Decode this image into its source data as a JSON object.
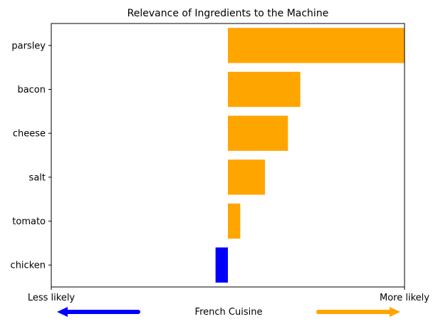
{
  "chart_data": {
    "type": "bar",
    "orientation": "horizontal",
    "title": "Relevance of Ingredients to the Machine",
    "categories": [
      "parsley",
      "bacon",
      "cheese",
      "salt",
      "tomato",
      "chicken"
    ],
    "values": [
      1.0,
      0.41,
      0.34,
      0.21,
      0.07,
      -0.07
    ],
    "bar_colors": [
      "#FFA500",
      "#FFA500",
      "#FFA500",
      "#FFA500",
      "#FFA500",
      "#0000FF"
    ],
    "xlim": [
      -1.0,
      1.0
    ],
    "x_tick_labels": [
      "Less likely",
      "More likely"
    ],
    "bottom_label": "French Cuisine",
    "negative_arrow_color": "#0000FF",
    "positive_arrow_color": "#FFA500",
    "grid": false,
    "legend": "none"
  }
}
